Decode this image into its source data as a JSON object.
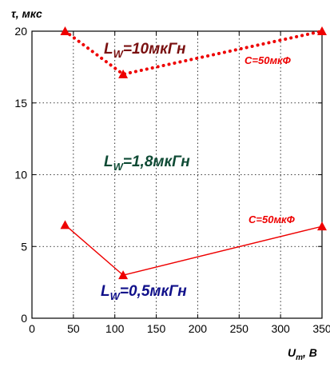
{
  "chart_data": {
    "type": "line",
    "ylabel": "τ, мкс",
    "xlabel": {
      "main": "U",
      "sub": "m",
      "rest": ", В"
    },
    "xlim": [
      0,
      350
    ],
    "ylim": [
      0,
      20
    ],
    "x_ticks": [
      0,
      50,
      100,
      150,
      200,
      250,
      300,
      350
    ],
    "y_ticks": [
      0,
      5,
      10,
      15,
      20
    ],
    "grid": true,
    "series": [
      {
        "id": "lw10",
        "label": {
          "main": "L",
          "sub": "W",
          "rest": "=10мкГн"
        },
        "label_color": "#7a1010",
        "line_color": "#ee0000",
        "line_style": "dotted",
        "x": [
          40,
          110,
          350
        ],
        "y": [
          20,
          17,
          20
        ]
      },
      {
        "id": "lw18",
        "label": {
          "main": "L",
          "sub": "W",
          "rest": "=1,8мкГн"
        },
        "label_color": "#0e4a34",
        "x": [],
        "y": []
      },
      {
        "id": "lw05",
        "label": {
          "main": "L",
          "sub": "W",
          "rest": "=0,5мкГн"
        },
        "label_color": "#10108a",
        "line_color": "#ee0000",
        "line_style": "solid",
        "x": [
          40,
          110,
          350
        ],
        "y": [
          6.5,
          3,
          6.4
        ]
      }
    ],
    "annotations": [
      {
        "id": "cap1",
        "text": "C=50мкФ"
      },
      {
        "id": "cap2",
        "text": "C=50мкФ"
      }
    ]
  }
}
